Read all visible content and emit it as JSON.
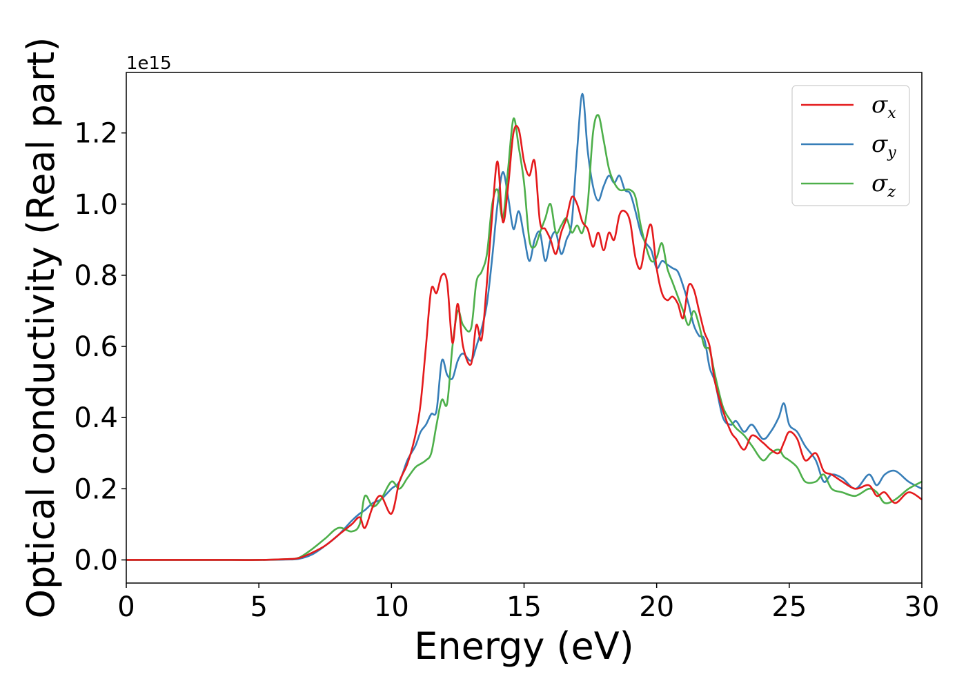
{
  "chart_data": {
    "type": "line",
    "xlabel": "Energy (eV)",
    "ylabel": "Optical conductivity (Real part)",
    "y_offset_label": "1e15",
    "y_scale": 1000000000000000.0,
    "xlim": [
      0,
      30
    ],
    "ylim": [
      -0.065,
      1.37
    ],
    "x_ticks": [
      0,
      5,
      10,
      15,
      20,
      25,
      30
    ],
    "x_tick_labels": [
      "0",
      "5",
      "10",
      "15",
      "20",
      "25",
      "30"
    ],
    "y_ticks": [
      0.0,
      0.2,
      0.4,
      0.6,
      0.8,
      1.0,
      1.2
    ],
    "y_tick_labels": [
      "0.0",
      "0.2",
      "0.4",
      "0.6",
      "0.8",
      "1.0",
      "1.2"
    ],
    "grid": false,
    "legend_position": "top-right",
    "series": [
      {
        "name": "σx",
        "symbol": "σ",
        "subscript": "x",
        "color": "#e41a1c",
        "x": [
          0,
          2,
          4,
          5,
          6,
          6.5,
          7,
          7.5,
          8,
          8.5,
          8.8,
          9,
          9.3,
          9.6,
          10,
          10.3,
          10.6,
          10.9,
          11.1,
          11.3,
          11.5,
          11.7,
          11.9,
          12.1,
          12.3,
          12.5,
          12.7,
          13,
          13.2,
          13.4,
          13.6,
          13.8,
          14,
          14.2,
          14.4,
          14.6,
          14.8,
          15,
          15.2,
          15.4,
          15.6,
          15.8,
          16,
          16.2,
          16.4,
          16.6,
          16.8,
          17,
          17.2,
          17.4,
          17.6,
          17.8,
          18,
          18.2,
          18.4,
          18.6,
          18.8,
          19,
          19.2,
          19.4,
          19.6,
          19.8,
          20,
          20.2,
          20.4,
          20.6,
          20.8,
          21,
          21.2,
          21.4,
          21.6,
          21.8,
          22,
          22.2,
          22.5,
          22.8,
          23,
          23.3,
          23.6,
          24,
          24.3,
          24.6,
          24.8,
          25,
          25.3,
          25.6,
          26,
          26.3,
          26.6,
          27,
          27.5,
          28,
          28.3,
          28.6,
          29,
          29.5,
          30
        ],
        "y": [
          0.0,
          0.0,
          0.0,
          0.0,
          0.002,
          0.005,
          0.02,
          0.04,
          0.07,
          0.1,
          0.12,
          0.09,
          0.15,
          0.18,
          0.13,
          0.22,
          0.27,
          0.35,
          0.44,
          0.6,
          0.76,
          0.75,
          0.8,
          0.78,
          0.61,
          0.72,
          0.6,
          0.55,
          0.66,
          0.62,
          0.78,
          0.97,
          1.12,
          0.95,
          1.05,
          1.2,
          1.21,
          1.12,
          1.08,
          1.12,
          0.95,
          0.93,
          0.9,
          0.86,
          0.92,
          0.96,
          1.02,
          1.0,
          0.95,
          0.93,
          0.88,
          0.92,
          0.87,
          0.92,
          0.9,
          0.97,
          0.98,
          0.95,
          0.85,
          0.82,
          0.9,
          0.94,
          0.82,
          0.75,
          0.73,
          0.74,
          0.72,
          0.68,
          0.77,
          0.76,
          0.7,
          0.64,
          0.6,
          0.5,
          0.42,
          0.36,
          0.34,
          0.31,
          0.35,
          0.33,
          0.31,
          0.3,
          0.33,
          0.36,
          0.34,
          0.28,
          0.3,
          0.25,
          0.24,
          0.22,
          0.2,
          0.21,
          0.18,
          0.19,
          0.16,
          0.19,
          0.17
        ]
      },
      {
        "name": "σy",
        "symbol": "σ",
        "subscript": "y",
        "color": "#377eb8",
        "x": [
          0,
          2,
          4,
          5,
          6,
          6.5,
          7,
          7.5,
          8,
          8.5,
          8.8,
          9,
          9.3,
          9.6,
          10,
          10.3,
          10.6,
          10.9,
          11.1,
          11.3,
          11.5,
          11.7,
          11.9,
          12.1,
          12.3,
          12.5,
          12.7,
          13,
          13.2,
          13.4,
          13.6,
          13.8,
          14,
          14.2,
          14.4,
          14.6,
          14.8,
          15,
          15.2,
          15.4,
          15.6,
          15.8,
          16,
          16.2,
          16.4,
          16.6,
          16.8,
          17,
          17.2,
          17.4,
          17.6,
          17.8,
          18,
          18.2,
          18.4,
          18.6,
          18.8,
          19,
          19.2,
          19.4,
          19.6,
          19.8,
          20,
          20.2,
          20.4,
          20.6,
          20.8,
          21,
          21.2,
          21.4,
          21.6,
          21.8,
          22,
          22.2,
          22.5,
          22.8,
          23,
          23.3,
          23.6,
          24,
          24.3,
          24.6,
          24.8,
          25,
          25.3,
          25.6,
          26,
          26.3,
          26.6,
          27,
          27.5,
          28,
          28.3,
          28.6,
          29,
          29.5,
          30
        ],
        "y": [
          0.0,
          0.0,
          0.0,
          0.0,
          0.001,
          0.003,
          0.015,
          0.04,
          0.07,
          0.11,
          0.13,
          0.14,
          0.16,
          0.17,
          0.2,
          0.22,
          0.28,
          0.32,
          0.36,
          0.38,
          0.41,
          0.42,
          0.56,
          0.52,
          0.51,
          0.56,
          0.58,
          0.56,
          0.6,
          0.65,
          0.72,
          0.85,
          1.0,
          1.09,
          1.02,
          0.93,
          0.98,
          0.91,
          0.84,
          0.9,
          0.92,
          0.84,
          0.9,
          0.92,
          0.86,
          0.9,
          0.95,
          1.15,
          1.31,
          1.15,
          1.05,
          1.01,
          1.05,
          1.08,
          1.06,
          1.08,
          1.04,
          1.03,
          0.98,
          0.92,
          0.89,
          0.87,
          0.82,
          0.84,
          0.83,
          0.82,
          0.81,
          0.77,
          0.72,
          0.66,
          0.63,
          0.62,
          0.54,
          0.5,
          0.4,
          0.38,
          0.39,
          0.36,
          0.38,
          0.34,
          0.36,
          0.4,
          0.44,
          0.38,
          0.36,
          0.32,
          0.28,
          0.22,
          0.24,
          0.23,
          0.2,
          0.24,
          0.21,
          0.24,
          0.25,
          0.22,
          0.2
        ]
      },
      {
        "name": "σz",
        "symbol": "σ",
        "subscript": "z",
        "color": "#4daf4a",
        "x": [
          0,
          2,
          4,
          5,
          6,
          6.5,
          7,
          7.5,
          8,
          8.5,
          8.8,
          9,
          9.3,
          9.6,
          10,
          10.3,
          10.6,
          10.9,
          11.1,
          11.3,
          11.5,
          11.7,
          11.9,
          12.1,
          12.3,
          12.5,
          12.7,
          13,
          13.2,
          13.4,
          13.6,
          13.8,
          14,
          14.2,
          14.4,
          14.6,
          14.8,
          15,
          15.2,
          15.4,
          15.6,
          15.8,
          16,
          16.2,
          16.4,
          16.6,
          16.8,
          17,
          17.2,
          17.4,
          17.6,
          17.8,
          18,
          18.2,
          18.4,
          18.6,
          18.8,
          19,
          19.2,
          19.4,
          19.6,
          19.8,
          20,
          20.2,
          20.4,
          20.6,
          20.8,
          21,
          21.2,
          21.4,
          21.6,
          21.8,
          22,
          22.2,
          22.5,
          22.8,
          23,
          23.3,
          23.6,
          24,
          24.3,
          24.6,
          24.8,
          25,
          25.3,
          25.6,
          26,
          26.3,
          26.6,
          27,
          27.5,
          28,
          28.3,
          28.6,
          29,
          29.5,
          30
        ],
        "y": [
          0.0,
          0.0,
          0.0,
          0.0,
          0.002,
          0.006,
          0.03,
          0.06,
          0.09,
          0.08,
          0.1,
          0.18,
          0.15,
          0.17,
          0.22,
          0.2,
          0.23,
          0.26,
          0.27,
          0.28,
          0.3,
          0.38,
          0.45,
          0.44,
          0.6,
          0.7,
          0.66,
          0.65,
          0.78,
          0.81,
          0.86,
          1.0,
          1.04,
          0.96,
          1.1,
          1.24,
          1.16,
          1.06,
          0.9,
          0.88,
          0.92,
          0.96,
          1.0,
          0.92,
          0.94,
          0.96,
          0.92,
          0.94,
          0.92,
          1.0,
          1.2,
          1.25,
          1.18,
          1.1,
          1.06,
          1.04,
          1.04,
          1.04,
          1.02,
          0.94,
          0.88,
          0.84,
          0.85,
          0.89,
          0.82,
          0.78,
          0.74,
          0.7,
          0.66,
          0.7,
          0.66,
          0.6,
          0.59,
          0.52,
          0.43,
          0.39,
          0.37,
          0.35,
          0.32,
          0.28,
          0.3,
          0.31,
          0.29,
          0.28,
          0.26,
          0.22,
          0.22,
          0.24,
          0.2,
          0.19,
          0.18,
          0.2,
          0.19,
          0.16,
          0.17,
          0.2,
          0.22
        ]
      }
    ]
  }
}
